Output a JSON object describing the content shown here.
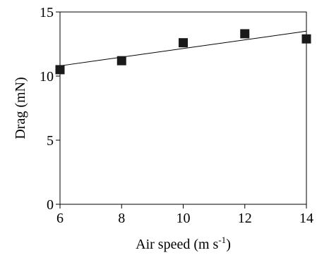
{
  "chart_data": {
    "type": "scatter",
    "title": "",
    "xlabel": {
      "prefix": "Air speed (m s",
      "superscript": "-1",
      "suffix": ")"
    },
    "ylabel": "Drag (mN)",
    "xlim": [
      6,
      14
    ],
    "ylim": [
      0,
      15
    ],
    "xticks": [
      6,
      8,
      10,
      12,
      14
    ],
    "yticks": [
      0,
      5,
      10,
      15
    ],
    "xtick_labels": [
      "6",
      "8",
      "10",
      "12",
      "14"
    ],
    "ytick_labels": [
      "0",
      "5",
      "10",
      "15"
    ],
    "grid": false,
    "series": [
      {
        "marker": "square",
        "color": "#1a1a1a",
        "points": [
          {
            "x": 6,
            "y": 10.5
          },
          {
            "x": 8,
            "y": 11.2
          },
          {
            "x": 10,
            "y": 12.6
          },
          {
            "x": 12,
            "y": 13.3
          },
          {
            "x": 14,
            "y": 12.9
          }
        ]
      }
    ],
    "trendline": {
      "type": "linear",
      "color": "#000000",
      "points": [
        {
          "x": 6,
          "y": 10.8
        },
        {
          "x": 14,
          "y": 13.5
        }
      ]
    }
  }
}
